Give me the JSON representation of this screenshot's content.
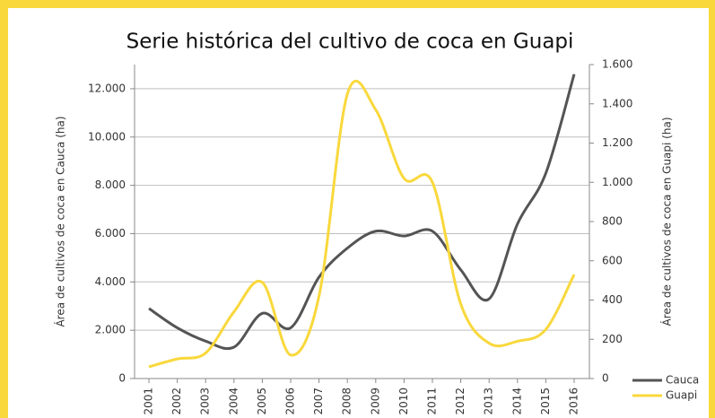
{
  "chart_data": {
    "type": "line",
    "title": "Serie histórica del cultivo de coca en Guapi",
    "y_label": "Área de cultivos de coca en Cauca (ha)",
    "y2_label": "Área de cultivos de coca en Guapi (ha)",
    "categories": [
      "2001",
      "2002",
      "2003",
      "2004",
      "2005",
      "2006",
      "2007",
      "2008",
      "2009",
      "2010",
      "2011",
      "2012",
      "2013",
      "2014",
      "2015",
      "2016"
    ],
    "series": [
      {
        "name": "Cauca",
        "color": "#545454",
        "values": [
          2900,
          2100,
          1550,
          1300,
          2700,
          2100,
          4200,
          5400,
          6100,
          5900,
          6100,
          4500,
          3300,
          6400,
          8500,
          12600
        ]
      },
      {
        "name": "Guapi",
        "color": "#f9d83c",
        "axis": "y2",
        "values": [
          60,
          100,
          130,
          340,
          490,
          120,
          420,
          1450,
          1370,
          1020,
          1000,
          380,
          180,
          190,
          250,
          530
        ]
      }
    ],
    "ylim": [
      0,
      13000
    ],
    "yticks": [
      0,
      {
        "value": 2000,
        "label": "2.000"
      },
      {
        "value": 4000,
        "label": "4.000"
      },
      {
        "value": 6000,
        "label": "6.000"
      },
      {
        "value": 8000,
        "label": "8.000"
      },
      {
        "value": 10000,
        "label": "10.000"
      },
      {
        "value": 12000,
        "label": "12.000"
      }
    ],
    "y2lim": [
      0,
      1600
    ],
    "y2ticks": [
      0,
      200,
      400,
      600,
      800,
      {
        "value": 1000,
        "label": "1.000"
      },
      {
        "value": 1200,
        "label": "1.200"
      },
      {
        "value": 1400,
        "label": "1.400"
      },
      {
        "value": 1600,
        "label": "1.600"
      }
    ],
    "grid": true,
    "legend": "lower right"
  }
}
